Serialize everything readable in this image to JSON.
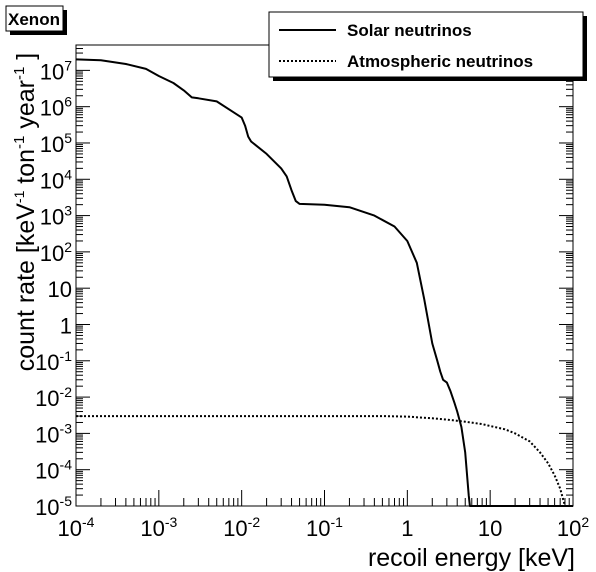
{
  "chart_data": {
    "type": "line",
    "title": "Xenon",
    "xlabel": "recoil energy [keV]",
    "ylabel": {
      "prefix": "count rate [keV",
      "exp1": "-1",
      "mid1": " ton",
      "exp2": "-1",
      "mid2": " year",
      "exp3": "-1",
      "suffix": " ]"
    },
    "x_scale": "log",
    "y_scale": "log",
    "xlim": [
      0.0001,
      100
    ],
    "ylim": [
      1e-05,
      50000000
    ],
    "x_ticks": [
      {
        "value": 0.0001,
        "base": "10",
        "exp": "-4"
      },
      {
        "value": 0.001,
        "base": "10",
        "exp": "-3"
      },
      {
        "value": 0.01,
        "base": "10",
        "exp": "-2"
      },
      {
        "value": 0.1,
        "base": "10",
        "exp": "-1"
      },
      {
        "value": 1,
        "base": "1",
        "exp": ""
      },
      {
        "value": 10,
        "base": "10",
        "exp": ""
      },
      {
        "value": 100,
        "base": "10",
        "exp": "2"
      }
    ],
    "y_ticks": [
      {
        "value": 1e-05,
        "base": "10",
        "exp": "-5"
      },
      {
        "value": 0.0001,
        "base": "10",
        "exp": "-4"
      },
      {
        "value": 0.001,
        "base": "10",
        "exp": "-3"
      },
      {
        "value": 0.01,
        "base": "10",
        "exp": "-2"
      },
      {
        "value": 0.1,
        "base": "10",
        "exp": "-1"
      },
      {
        "value": 1,
        "base": "1",
        "exp": ""
      },
      {
        "value": 10,
        "base": "10",
        "exp": ""
      },
      {
        "value": 100,
        "base": "10",
        "exp": "2"
      },
      {
        "value": 1000,
        "base": "10",
        "exp": "3"
      },
      {
        "value": 10000,
        "base": "10",
        "exp": "4"
      },
      {
        "value": 100000,
        "base": "10",
        "exp": "5"
      },
      {
        "value": 1000000,
        "base": "10",
        "exp": "6"
      },
      {
        "value": 10000000,
        "base": "10",
        "exp": "7"
      }
    ],
    "legend_position": "top-right",
    "grid": false,
    "series": [
      {
        "name": "Solar neutrinos",
        "style": "solid",
        "color": "#000000",
        "x": [
          0.0001,
          0.0002,
          0.0004,
          0.0007,
          0.001,
          0.0015,
          0.002,
          0.0025,
          0.003,
          0.005,
          0.008,
          0.01,
          0.011,
          0.012,
          0.013,
          0.02,
          0.03,
          0.035,
          0.04,
          0.045,
          0.05,
          0.1,
          0.2,
          0.4,
          0.7,
          1.0,
          1.3,
          1.6,
          2.0,
          2.3,
          2.5,
          2.7,
          3.0,
          3.3,
          3.7,
          4.0,
          4.5,
          5.0,
          5.5,
          5.7,
          10,
          20,
          50,
          100
        ],
        "y": [
          20000000,
          19000000,
          15000000,
          11000000,
          7000000,
          4500000,
          2800000,
          1800000,
          1700000,
          1400000,
          700000,
          500000,
          300000,
          150000,
          110000,
          50000,
          20000,
          12000,
          5000,
          2500,
          2100,
          2000,
          1700,
          1000,
          500,
          200,
          50,
          5,
          0.3,
          0.1,
          0.05,
          0.03,
          0.025,
          0.015,
          0.007,
          0.004,
          0.0015,
          0.0003,
          2e-05,
          1e-05,
          1e-05,
          1e-05,
          1e-05,
          1e-05
        ]
      },
      {
        "name": "Atmospheric neutrinos",
        "style": "dotted",
        "color": "#000000",
        "x": [
          0.0001,
          0.001,
          0.01,
          0.1,
          0.5,
          1.0,
          2.0,
          3.0,
          5.0,
          8.0,
          10,
          15,
          20,
          30,
          40,
          50,
          60,
          70,
          80
        ],
        "y": [
          0.003,
          0.003,
          0.003,
          0.003,
          0.003,
          0.0029,
          0.0026,
          0.0024,
          0.0021,
          0.0018,
          0.0016,
          0.0013,
          0.001,
          0.0006,
          0.0003,
          0.00015,
          7e-05,
          3e-05,
          1e-05
        ]
      }
    ]
  }
}
